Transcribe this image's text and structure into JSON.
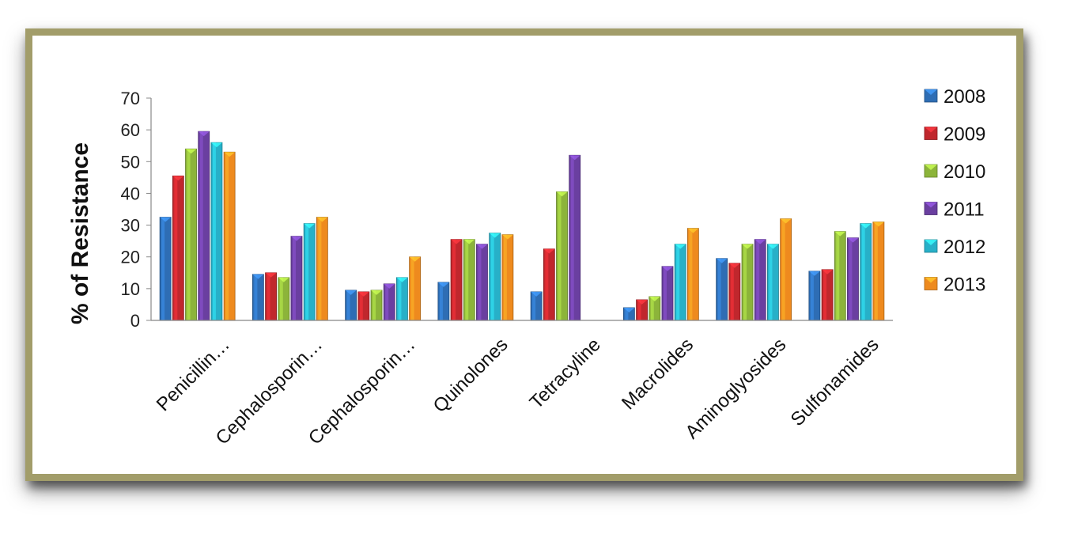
{
  "chart_data": {
    "type": "bar",
    "ylabel": "% of Resistance",
    "ylim": [
      0,
      70
    ],
    "yticks": [
      0,
      10,
      20,
      30,
      40,
      50,
      60,
      70
    ],
    "legend_position": "right",
    "categories": [
      "Penicillin…",
      "Cephalosporin…",
      "Cephalosporin…",
      "Quinolones",
      "Tetracyline",
      "Macrolides",
      "Aminoglyosides",
      "Sulfonamides"
    ],
    "series": [
      {
        "name": "2008",
        "color": "#2e6db4",
        "values": [
          32.5,
          14.5,
          9.5,
          12,
          9,
          4,
          19.5,
          15.5
        ]
      },
      {
        "name": "2009",
        "color": "#c0272d",
        "values": [
          45.5,
          15,
          9,
          25.5,
          22.5,
          6.5,
          18,
          16
        ]
      },
      {
        "name": "2010",
        "color": "#8cb43a",
        "values": [
          54,
          13.5,
          9.5,
          25.5,
          40.5,
          7.5,
          24,
          28
        ]
      },
      {
        "name": "2011",
        "color": "#6a3fa0",
        "values": [
          59.5,
          26.5,
          11.5,
          24,
          52,
          17,
          25.5,
          26
        ]
      },
      {
        "name": "2012",
        "color": "#27b0c8",
        "values": [
          56,
          30.5,
          13.5,
          27.5,
          null,
          24,
          24,
          30.5
        ]
      },
      {
        "name": "2013",
        "color": "#ee8a1e",
        "values": [
          53,
          32.5,
          20,
          27,
          null,
          29,
          32,
          31
        ]
      }
    ]
  }
}
